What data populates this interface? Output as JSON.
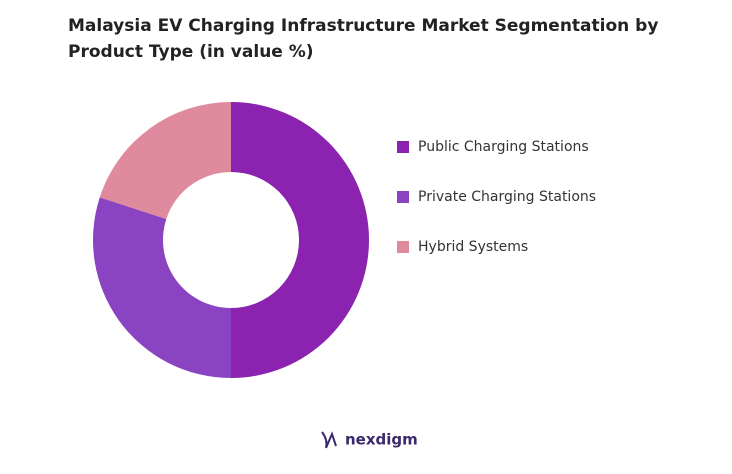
{
  "chart_data": {
    "type": "pie",
    "title": "Malaysia EV Charging Infrastructure Market Segmentation by Product Type (in value %)",
    "categories": [
      "Public Charging Stations",
      "Private Charging Stations",
      "Hybrid Systems"
    ],
    "values": [
      50,
      30,
      20
    ],
    "colors": [
      "#8b22b0",
      "#8a44c2",
      "#df8a9d"
    ],
    "donut": true,
    "legend": "right"
  },
  "footer": {
    "logo": "nexdigm"
  }
}
